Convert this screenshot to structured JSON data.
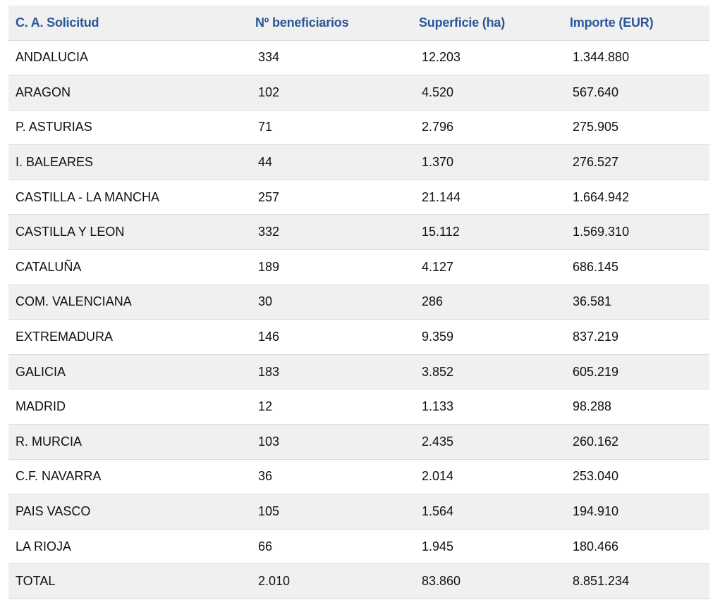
{
  "table": {
    "headers": [
      "C. A. Solicitud",
      "Nº beneficiarios",
      "Superficie (ha)",
      "Importe (EUR)"
    ],
    "rows": [
      [
        "ANDALUCIA",
        "334",
        "12.203",
        "1.344.880"
      ],
      [
        "ARAGON",
        "102",
        "4.520",
        "567.640"
      ],
      [
        "P. ASTURIAS",
        "71",
        "2.796",
        "275.905"
      ],
      [
        "I. BALEARES",
        "44",
        "1.370",
        "276.527"
      ],
      [
        "CASTILLA - LA MANCHA",
        "257",
        "21.144",
        "1.664.942"
      ],
      [
        "CASTILLA Y LEON",
        "332",
        "15.112",
        "1.569.310"
      ],
      [
        "CATALUÑA",
        "189",
        "4.127",
        "686.145"
      ],
      [
        "COM. VALENCIANA",
        "30",
        "286",
        "36.581"
      ],
      [
        "EXTREMADURA",
        "146",
        "9.359",
        "837.219"
      ],
      [
        "GALICIA",
        "183",
        "3.852",
        "605.219"
      ],
      [
        "MADRID",
        "12",
        "1.133",
        "98.288"
      ],
      [
        "R. MURCIA",
        "103",
        "2.435",
        "260.162"
      ],
      [
        "C.F. NAVARRA",
        "36",
        "2.014",
        "253.040"
      ],
      [
        "PAIS VASCO",
        "105",
        "1.564",
        "194.910"
      ],
      [
        "LA RIOJA",
        "66",
        "1.945",
        "180.466"
      ],
      [
        "TOTAL",
        "2.010",
        "83.860",
        "8.851.234"
      ]
    ]
  },
  "colors": {
    "header_text": "#2a5599",
    "row_shade": "#f0f0f0",
    "row_border": "#dcdcdc"
  }
}
